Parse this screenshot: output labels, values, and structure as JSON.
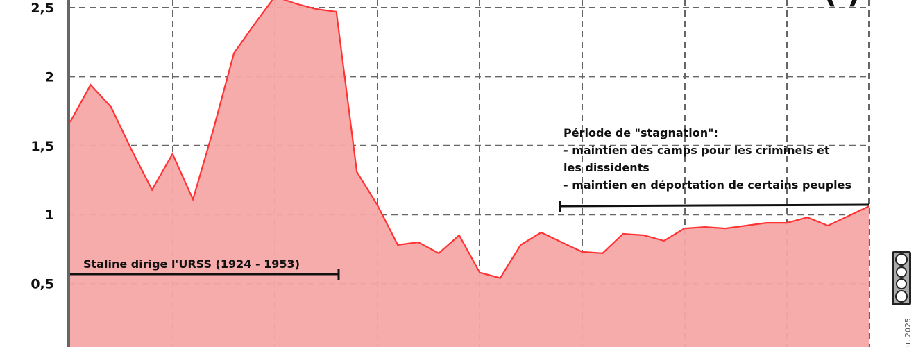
{
  "chart_data": {
    "type": "area",
    "title_fragment": "(           )",
    "ylim": [
      0,
      2.5
    ],
    "y_ticks": [
      "0,5",
      "1",
      "1,5",
      "2",
      "2,5"
    ],
    "y_tick_values": [
      0.5,
      1,
      1.5,
      2,
      2.5
    ],
    "grid": true,
    "colors": {
      "fill": "#f7a8a8",
      "line": "#ff3333",
      "grid": "#666666",
      "axis": "#666666"
    },
    "series": [
      {
        "values": [
          1.67,
          1.94,
          1.78,
          1.47,
          1.18,
          1.44,
          1.11,
          1.62,
          2.17,
          2.38,
          2.58,
          2.53,
          2.49,
          2.47,
          1.31,
          1.07,
          0.78,
          0.8,
          0.72,
          0.85,
          0.58,
          0.54,
          0.78,
          0.87,
          0.8,
          0.73,
          0.72,
          0.86,
          0.85,
          0.81,
          0.9,
          0.91,
          0.9,
          0.92,
          0.94,
          0.94,
          0.98,
          0.92,
          0.99,
          1.06
        ]
      }
    ],
    "annotations": {
      "stalin_label": "Staline dirige l'URSS (1924 - 1953)",
      "stagnation_lines": [
        "Période de \"stagnation\":",
        "-  maintien des camps pour les criminels et",
        "les dissidents",
        "- maintien en déportation de certains peuples"
      ]
    }
  },
  "credits": {
    "license_icon": "cc-by-nc-sa-icon",
    "author_fragment": "u, 2025"
  }
}
